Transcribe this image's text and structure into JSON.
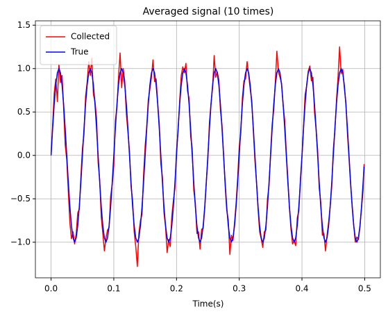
{
  "chart_data": {
    "type": "line",
    "title": "Averaged signal (10 times)",
    "xlabel": "Time(s)",
    "x": [
      0,
      0.0025,
      0.005,
      0.0075,
      0.01,
      0.0125,
      0.015,
      0.0175,
      0.02,
      0.0225,
      0.025,
      0.0275,
      0.03,
      0.0325,
      0.035,
      0.0375,
      0.04,
      0.0425,
      0.045,
      0.0475,
      0.05,
      0.0525,
      0.055,
      0.0575,
      0.06,
      0.0625,
      0.065,
      0.0675,
      0.07,
      0.0725,
      0.075,
      0.0775,
      0.08,
      0.0825,
      0.085,
      0.0875,
      0.09,
      0.0925,
      0.095,
      0.0975,
      0.1,
      0.1025,
      0.105,
      0.1075,
      0.11,
      0.1125,
      0.115,
      0.1175,
      0.12,
      0.1225,
      0.125,
      0.1275,
      0.13,
      0.1325,
      0.135,
      0.1375,
      0.14,
      0.1425,
      0.145,
      0.1475,
      0.15,
      0.1525,
      0.155,
      0.1575,
      0.16,
      0.1625,
      0.165,
      0.1675,
      0.17,
      0.1725,
      0.175,
      0.1775,
      0.18,
      0.1825,
      0.185,
      0.1875,
      0.19,
      0.1925,
      0.195,
      0.1975,
      0.2,
      0.2025,
      0.205,
      0.2075,
      0.21,
      0.2125,
      0.215,
      0.2175,
      0.22,
      0.2225,
      0.225,
      0.2275,
      0.23,
      0.2325,
      0.235,
      0.2375,
      0.24,
      0.2425,
      0.245,
      0.2475,
      0.25,
      0.2525,
      0.255,
      0.2575,
      0.26,
      0.2625,
      0.265,
      0.2675,
      0.27,
      0.2725,
      0.275,
      0.2775,
      0.28,
      0.2825,
      0.285,
      0.2875,
      0.29,
      0.2925,
      0.295,
      0.2975,
      0.3,
      0.3025,
      0.305,
      0.3075,
      0.31,
      0.3125,
      0.315,
      0.3175,
      0.32,
      0.3225,
      0.325,
      0.3275,
      0.33,
      0.3325,
      0.335,
      0.3375,
      0.34,
      0.3425,
      0.345,
      0.3475,
      0.35,
      0.3525,
      0.355,
      0.3575,
      0.36,
      0.3625,
      0.365,
      0.3675,
      0.37,
      0.3725,
      0.375,
      0.3775,
      0.38,
      0.3825,
      0.385,
      0.3875,
      0.39,
      0.3925,
      0.395,
      0.3975,
      0.4,
      0.4025,
      0.405,
      0.4075,
      0.41,
      0.4125,
      0.415,
      0.4175,
      0.42,
      0.4225,
      0.425,
      0.4275,
      0.43,
      0.4325,
      0.435,
      0.4375,
      0.44,
      0.4425,
      0.445,
      0.4475,
      0.45,
      0.4525,
      0.455,
      0.4575,
      0.46,
      0.4625,
      0.465,
      0.4675,
      0.47,
      0.4725,
      0.475,
      0.4775,
      0.48,
      0.4825,
      0.485,
      0.4875,
      0.49,
      0.4925,
      0.495,
      0.4975,
      0.499
    ],
    "series": [
      {
        "name": "Collected",
        "color": "#ff0000",
        "values": [
          0.02,
          0.35,
          0.72,
          0.88,
          0.62,
          1.05,
          0.84,
          0.92,
          0.55,
          0.12,
          -0.05,
          -0.42,
          -0.78,
          -0.96,
          -0.88,
          -1.02,
          -0.91,
          -0.66,
          -0.62,
          -0.25,
          0.08,
          0.25,
          0.68,
          0.84,
          1.08,
          0.92,
          1.12,
          0.7,
          0.62,
          0.43,
          -0.08,
          -0.28,
          -0.71,
          -0.9,
          -1.1,
          -0.95,
          -0.86,
          -0.83,
          -0.47,
          -0.33,
          -0.12,
          0.4,
          0.55,
          0.9,
          1.18,
          0.78,
          1.0,
          0.85,
          0.48,
          0.27,
          0.05,
          -0.36,
          -0.52,
          -0.88,
          -1.05,
          -1.28,
          -0.9,
          -0.75,
          -0.68,
          -0.22,
          0.11,
          0.33,
          0.64,
          0.76,
          0.9,
          1.1,
          0.85,
          0.88,
          0.6,
          0.36,
          -0.1,
          -0.25,
          -0.66,
          -0.82,
          -1.12,
          -0.97,
          -1.05,
          -0.7,
          -0.52,
          -0.38,
          0.06,
          0.28,
          0.62,
          0.92,
          1.02,
          0.95,
          1.06,
          0.74,
          0.66,
          0.22,
          0.08,
          -0.4,
          -0.55,
          -0.9,
          -0.88,
          -1.08,
          -0.85,
          -0.84,
          -0.61,
          -0.3,
          -0.04,
          0.38,
          0.6,
          0.78,
          1.15,
          0.9,
          0.96,
          0.87,
          0.52,
          0.35,
          0.02,
          -0.34,
          -0.63,
          -0.74,
          -1.14,
          -0.92,
          -0.98,
          -0.78,
          -0.55,
          -0.26,
          0.1,
          0.26,
          0.66,
          0.86,
          0.88,
          1.08,
          0.93,
          0.76,
          0.63,
          0.28,
          -0.06,
          -0.3,
          -0.62,
          -0.88,
          -0.96,
          -1.06,
          -0.88,
          -0.86,
          -0.5,
          -0.35,
          0.03,
          0.36,
          0.52,
          0.84,
          1.2,
          0.96,
          0.9,
          0.83,
          0.57,
          0.4,
          0.04,
          -0.27,
          -0.6,
          -0.85,
          -1.02,
          -0.98,
          -1.04,
          -0.72,
          -0.64,
          -0.28,
          -0.02,
          0.32,
          0.7,
          0.8,
          0.97,
          1.03,
          0.86,
          0.9,
          0.5,
          0.3,
          0.06,
          -0.38,
          -0.54,
          -0.92,
          -0.9,
          -1.1,
          -0.92,
          -0.77,
          -0.58,
          -0.36,
          0.07,
          0.29,
          0.63,
          0.9,
          1.25,
          0.94,
          0.99,
          0.78,
          0.61,
          0.25,
          -0.03,
          -0.33,
          -0.57,
          -0.8,
          -1.0,
          -0.94,
          -0.97,
          -0.82,
          -0.6,
          -0.4,
          -0.1
        ]
      },
      {
        "name": "True",
        "color": "#0000ff",
        "values": [
          0,
          0.31,
          0.59,
          0.81,
          0.95,
          1,
          0.95,
          0.81,
          0.59,
          0.31,
          0,
          -0.31,
          -0.59,
          -0.81,
          -0.95,
          -1,
          -0.95,
          -0.81,
          -0.59,
          -0.31,
          0,
          0.31,
          0.59,
          0.81,
          0.95,
          1,
          0.95,
          0.81,
          0.59,
          0.31,
          0,
          -0.31,
          -0.59,
          -0.81,
          -0.95,
          -1,
          -0.95,
          -0.81,
          -0.59,
          -0.31,
          0,
          0.31,
          0.59,
          0.81,
          0.95,
          1,
          0.95,
          0.81,
          0.59,
          0.31,
          0,
          -0.31,
          -0.59,
          -0.81,
          -0.95,
          -1,
          -0.95,
          -0.81,
          -0.59,
          -0.31,
          0,
          0.31,
          0.59,
          0.81,
          0.95,
          1,
          0.95,
          0.81,
          0.59,
          0.31,
          0,
          -0.31,
          -0.59,
          -0.81,
          -0.95,
          -1,
          -0.95,
          -0.81,
          -0.59,
          -0.31,
          0,
          0.31,
          0.59,
          0.81,
          0.95,
          1,
          0.95,
          0.81,
          0.59,
          0.31,
          0,
          -0.31,
          -0.59,
          -0.81,
          -0.95,
          -1,
          -0.95,
          -0.81,
          -0.59,
          -0.31,
          0,
          0.31,
          0.59,
          0.81,
          0.95,
          1,
          0.95,
          0.81,
          0.59,
          0.31,
          0,
          -0.31,
          -0.59,
          -0.81,
          -0.95,
          -1,
          -0.95,
          -0.81,
          -0.59,
          -0.31,
          0,
          0.31,
          0.59,
          0.81,
          0.95,
          1,
          0.95,
          0.81,
          0.59,
          0.31,
          0,
          -0.31,
          -0.59,
          -0.81,
          -0.95,
          -1,
          -0.95,
          -0.81,
          -0.59,
          -0.31,
          0,
          0.31,
          0.59,
          0.81,
          0.95,
          1,
          0.95,
          0.81,
          0.59,
          0.31,
          0,
          -0.31,
          -0.59,
          -0.81,
          -0.95,
          -1,
          -0.95,
          -0.81,
          -0.59,
          -0.31,
          0,
          0.31,
          0.59,
          0.81,
          0.95,
          1,
          0.95,
          0.81,
          0.59,
          0.31,
          0,
          -0.31,
          -0.59,
          -0.81,
          -0.95,
          -1,
          -0.95,
          -0.81,
          -0.59,
          -0.31,
          0,
          0.31,
          0.59,
          0.81,
          0.95,
          1,
          0.95,
          0.81,
          0.59,
          0.31,
          0,
          -0.31,
          -0.59,
          -0.81,
          -0.95,
          -1,
          -0.95,
          -0.81,
          -0.59,
          -0.31,
          -0.13
        ]
      }
    ],
    "xlim": [
      -0.025,
      0.525
    ],
    "xticks": [
      {
        "value": 0,
        "label": "0.0"
      },
      0.1,
      0.2,
      0.3,
      0.4,
      0.5
    ],
    "ylim": [
      -1.41,
      1.55
    ],
    "yticks": [
      {
        "value": -1,
        "label": "−1.0"
      },
      {
        "value": -0.5,
        "label": "−0.5"
      },
      {
        "value": 0,
        "label": "0.0"
      },
      0.5,
      {
        "value": 1,
        "label": "1.0"
      },
      1.5
    ],
    "grid": true,
    "legend": "upper left"
  }
}
